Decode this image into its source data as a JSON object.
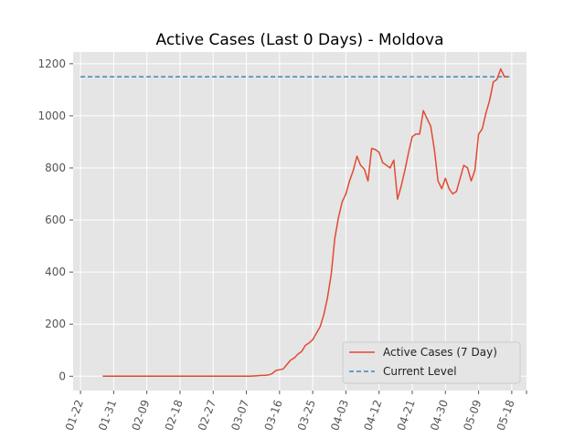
{
  "chart_data": {
    "type": "line",
    "title": "Active Cases (Last 0 Days) - Moldova",
    "xlabel": "",
    "ylabel": "",
    "x_start": "01-28",
    "x_ticks": [
      "01-22",
      "01-31",
      "02-09",
      "02-18",
      "02-27",
      "03-07",
      "03-16",
      "03-25",
      "04-03",
      "04-12",
      "04-21",
      "04-30",
      "05-09",
      "05-18"
    ],
    "xlim": [
      "01-20",
      "05-22"
    ],
    "ylim": [
      -55,
      1245
    ],
    "y_ticks": [
      0,
      200,
      400,
      600,
      800,
      1000,
      1200
    ],
    "grid": true,
    "legend_position": "lower-right",
    "series": [
      {
        "name": "Active Cases (7 Day)",
        "color": "#E24A33",
        "style": "solid",
        "values": [
          0,
          0,
          0,
          0,
          0,
          0,
          0,
          0,
          0,
          0,
          0,
          0,
          0,
          0,
          0,
          0,
          0,
          0,
          0,
          0,
          0,
          0,
          0,
          0,
          0,
          0,
          0,
          0,
          0,
          0,
          0,
          0,
          0,
          0,
          0,
          0,
          0,
          0,
          0,
          0,
          0,
          1,
          2,
          3,
          3,
          5,
          10,
          22,
          25,
          28,
          45,
          62,
          70,
          85,
          95,
          118,
          128,
          140,
          165,
          190,
          235,
          300,
          390,
          530,
          610,
          670,
          700,
          750,
          790,
          845,
          810,
          795,
          750,
          875,
          870,
          860,
          820,
          810,
          800,
          830,
          680,
          730,
          790,
          860,
          920,
          930,
          930,
          1020,
          990,
          960,
          870,
          750,
          720,
          760,
          720,
          700,
          710,
          760,
          810,
          800,
          750,
          790,
          930,
          950,
          1010,
          1060,
          1130,
          1140,
          1180,
          1150,
          1150
        ],
        "value_note_days_from": "01-28"
      },
      {
        "name": "Current Level",
        "color": "#348ABD",
        "style": "dashed",
        "value": 1150,
        "x_range": [
          "01-22",
          "05-18"
        ]
      }
    ]
  },
  "legend": {
    "items": [
      {
        "label": "Active Cases (7 Day)",
        "color": "#E24A33",
        "style": "solid"
      },
      {
        "label": "Current Level",
        "color": "#348ABD",
        "style": "dashed"
      }
    ]
  }
}
